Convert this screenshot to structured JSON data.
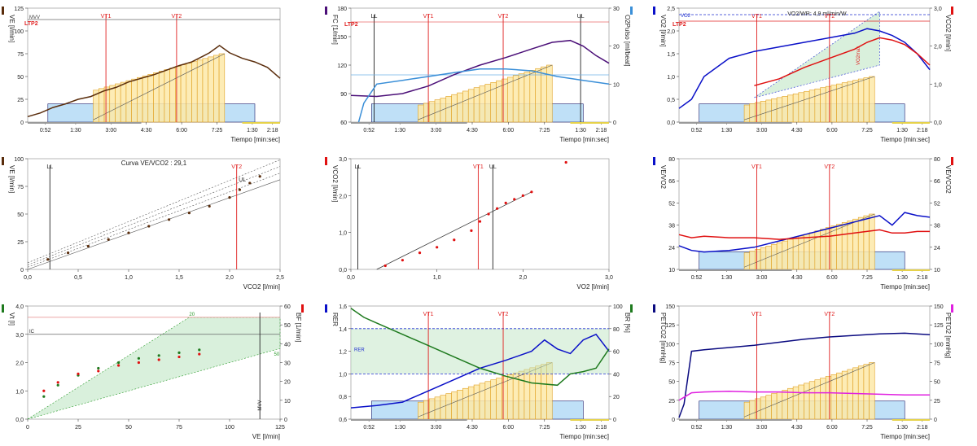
{
  "time_ticks": [
    "0:52",
    "1:30",
    "3:00",
    "4:30",
    "6:00",
    "7:25",
    "1:30",
    "2:18"
  ],
  "time_axis_label": "Tiempo [min:sec]",
  "colors": {
    "load_fill": "#fde9a8",
    "load_stroke": "#e0a020",
    "rest_fill": "#bfe0f7",
    "ve": "#5a2d0c",
    "hr": "#4b0f78",
    "o2pulse": "#3a8fd8",
    "vo2": "#0a10c8",
    "vco2": "#e01010",
    "eqo2": "#0a10c8",
    "eqco2": "#e01010",
    "rer": "#0a10c8",
    "br": "#1e7a1e",
    "petco2": "#0a0a80",
    "peto2": "#e020e0",
    "threshold": "#e02020",
    "marker": "#222222",
    "grid_band": "#2030d0",
    "hatch": "#2a9a2a"
  },
  "chart_data": [
    {
      "id": "ve-time",
      "type": "line",
      "y_label": "VE [l/min]",
      "ylim": [
        0,
        125
      ],
      "y_ticks": [
        "0",
        "25",
        "50",
        "75",
        "100",
        "125"
      ],
      "markers": {
        "VT1": "VT1",
        "VT2": "VT2",
        "LTP2": "LTP2",
        "MVV": "MVV"
      },
      "series": [
        {
          "key": "ve",
          "x": [
            0,
            0.05,
            0.1,
            0.15,
            0.2,
            0.25,
            0.3,
            0.35,
            0.4,
            0.45,
            0.5,
            0.55,
            0.6,
            0.65,
            0.7,
            0.72,
            0.76,
            0.8,
            0.85,
            0.9,
            0.95,
            1.0
          ],
          "y": [
            6,
            10,
            16,
            20,
            25,
            28,
            34,
            38,
            44,
            48,
            52,
            57,
            62,
            66,
            73,
            76,
            84,
            76,
            70,
            66,
            60,
            48
          ]
        }
      ]
    },
    {
      "id": "hr-time",
      "type": "line",
      "y_label": "FC [1/min]",
      "y_label_right": "O2Pulso [ml/beat]",
      "ylim": [
        60,
        180
      ],
      "y_ticks": [
        "60",
        "90",
        "120",
        "150",
        "180"
      ],
      "y2lim": [
        0,
        30
      ],
      "y2_ticks": [
        "0",
        "10",
        "20",
        "30"
      ],
      "markers": {
        "LL": "LL",
        "VT1": "VT1",
        "VT2": "VT2",
        "UL": "UL",
        "LTP2": "LTP2"
      },
      "series": [
        {
          "key": "hr",
          "x": [
            0,
            0.1,
            0.2,
            0.3,
            0.4,
            0.5,
            0.6,
            0.7,
            0.78,
            0.85,
            0.9,
            0.95,
            1.0
          ],
          "y": [
            88,
            87,
            90,
            98,
            110,
            120,
            128,
            137,
            144,
            146,
            140,
            130,
            122
          ]
        },
        {
          "key": "o2pulse",
          "x": [
            0.03,
            0.05,
            0.1,
            0.2,
            0.3,
            0.4,
            0.5,
            0.6,
            0.7,
            0.8,
            0.9,
            1.0
          ],
          "y": [
            0,
            5,
            10,
            11,
            12,
            13,
            14,
            14,
            13.5,
            12,
            11,
            10
          ]
        }
      ]
    },
    {
      "id": "vo2-vco2-time",
      "type": "line",
      "y_label": "VO2 [l/min]",
      "y_label_right": "VCO2 [l/min]",
      "ylim": [
        0,
        2.5
      ],
      "y_ticks": [
        "0,0",
        "0,5",
        "1,0",
        "1,5",
        "2,0",
        "2,5"
      ],
      "y2_ticks": [
        "0,0",
        "1,0",
        "2,0",
        "3,0"
      ],
      "annotation": "VO2/WR: 4,9 ml/min/W",
      "markers": {
        "VO2": "VO2",
        "VT1": "VT1",
        "VT2": "VT2",
        "LTP2": "LTP2",
        "VO2max": "VO2max"
      },
      "series": [
        {
          "key": "vo2",
          "x": [
            0,
            0.05,
            0.1,
            0.2,
            0.3,
            0.4,
            0.5,
            0.6,
            0.7,
            0.75,
            0.8,
            0.85,
            0.9,
            0.95,
            1.0
          ],
          "y": [
            0.3,
            0.5,
            1.0,
            1.4,
            1.55,
            1.65,
            1.75,
            1.85,
            1.95,
            2.05,
            2.0,
            1.9,
            1.75,
            1.5,
            1.15
          ]
        },
        {
          "key": "vco2",
          "x": [
            0.3,
            0.4,
            0.5,
            0.6,
            0.7,
            0.75,
            0.8,
            0.85,
            0.9,
            0.95,
            1.0
          ],
          "y": [
            0.8,
            0.95,
            1.2,
            1.4,
            1.6,
            1.75,
            1.85,
            1.8,
            1.7,
            1.5,
            1.25
          ]
        }
      ]
    },
    {
      "id": "ve-vco2",
      "type": "scatter",
      "title": "Curva VE/VCO2 : 29,1",
      "x_label": "VCO2 [l/min]",
      "y_label": "VE [l/min]",
      "xlim": [
        0,
        2.5
      ],
      "x_ticks": [
        "0,0",
        "0,5",
        "1,0",
        "1,5",
        "2,0",
        "2,5"
      ],
      "ylim": [
        0,
        100
      ],
      "y_ticks": [
        "0",
        "25",
        "50",
        "75",
        "100"
      ],
      "markers": {
        "LL": "LL",
        "VT2": "VT2",
        "UL": "UL"
      },
      "series": [
        {
          "key": "ve",
          "x": [
            0.2,
            0.4,
            0.6,
            0.8,
            1.0,
            1.2,
            1.4,
            1.6,
            1.8,
            2.0,
            2.1,
            2.2,
            2.3
          ],
          "y": [
            9,
            15,
            21,
            27,
            33,
            39,
            45,
            51,
            57,
            65,
            72,
            78,
            84
          ]
        }
      ]
    },
    {
      "id": "vco2-vo2",
      "type": "scatter",
      "x_label": "VO2 [l/min]",
      "y_label": "VCO2 [l/min]",
      "xlim": [
        0,
        3.0
      ],
      "x_ticks": [
        "0,0",
        "1,0",
        "2,0",
        "3,0"
      ],
      "ylim": [
        0,
        3.0
      ],
      "y_ticks": [
        "0,0",
        "1,0",
        "2,0",
        "3,0"
      ],
      "markers": {
        "LL": "LL",
        "VT1": "VT1",
        "UL": "UL"
      },
      "series": [
        {
          "key": "vco2",
          "x": [
            0.4,
            0.6,
            0.8,
            1.0,
            1.2,
            1.4,
            1.5,
            1.6,
            1.7,
            1.8,
            1.9,
            2.0,
            2.1,
            2.5
          ],
          "y": [
            0.1,
            0.25,
            0.45,
            0.6,
            0.8,
            1.05,
            1.3,
            1.5,
            1.65,
            1.8,
            1.9,
            2.0,
            2.1,
            2.9
          ]
        }
      ]
    },
    {
      "id": "eq-time",
      "type": "line",
      "y_label": "VE/VO2",
      "y_label_right": "VE/VCO2",
      "ylim": [
        10,
        80
      ],
      "y_ticks": [
        "10",
        "24",
        "38",
        "52",
        "66",
        "80"
      ],
      "markers": {
        "VT1": "VT1",
        "VT2": "VT2"
      },
      "series": [
        {
          "key": "eqo2",
          "x": [
            0,
            0.05,
            0.1,
            0.2,
            0.3,
            0.4,
            0.5,
            0.6,
            0.7,
            0.8,
            0.85,
            0.9,
            0.95,
            1.0
          ],
          "y": [
            25,
            22,
            21,
            22,
            24,
            28,
            32,
            36,
            40,
            44,
            38,
            46,
            44,
            43
          ]
        },
        {
          "key": "eqco2",
          "x": [
            0,
            0.05,
            0.1,
            0.2,
            0.3,
            0.4,
            0.5,
            0.6,
            0.7,
            0.8,
            0.85,
            0.9,
            0.95,
            1.0
          ],
          "y": [
            32,
            30,
            31,
            30,
            30,
            29,
            30,
            31,
            33,
            35,
            33,
            33,
            34,
            34
          ]
        }
      ]
    },
    {
      "id": "vt-ve",
      "type": "scatter",
      "x_label": "VE [l/min]",
      "y_label": "Vt [l]",
      "y_label_right": "BF [1/min]",
      "xlim": [
        0,
        125
      ],
      "x_ticks": [
        "0",
        "25",
        "50",
        "75",
        "100",
        "125"
      ],
      "ylim": [
        0,
        4.0
      ],
      "y_ticks": [
        "0,0",
        "1,0",
        "2,0",
        "3,0",
        "4,0"
      ],
      "y2_ticks": [
        "0",
        "10",
        "20",
        "30",
        "40",
        "50",
        "60"
      ],
      "markers": {
        "IC": "IC",
        "MVV": "MVV",
        "20": "20",
        "50": "50"
      },
      "series": [
        {
          "key": "vt",
          "x": [
            8,
            15,
            25,
            35,
            45,
            55,
            65,
            75,
            85
          ],
          "y": [
            0.8,
            1.2,
            1.55,
            1.8,
            2.0,
            2.15,
            2.25,
            2.35,
            2.45
          ]
        },
        {
          "key": "bf",
          "x": [
            8,
            15,
            25,
            35,
            45,
            55,
            65,
            75,
            85
          ],
          "y": [
            1.0,
            1.3,
            1.6,
            1.7,
            1.9,
            2.0,
            2.1,
            2.2,
            2.3
          ]
        }
      ]
    },
    {
      "id": "rer-time",
      "type": "line",
      "y_label": "RER",
      "y_label_right": "BR [%]",
      "ylim": [
        0.6,
        1.6
      ],
      "y_ticks": [
        "0,6",
        "0,8",
        "1,0",
        "1,2",
        "1,4",
        "1,6"
      ],
      "y2_ticks": [
        "0",
        "20",
        "40",
        "60",
        "80",
        "100"
      ],
      "markers": {
        "VT1": "VT1",
        "VT2": "VT2",
        "RER": "RER"
      },
      "series": [
        {
          "key": "rer",
          "x": [
            0,
            0.1,
            0.2,
            0.3,
            0.4,
            0.5,
            0.6,
            0.7,
            0.75,
            0.8,
            0.85,
            0.9,
            0.95,
            1.0
          ],
          "y": [
            0.7,
            0.72,
            0.75,
            0.85,
            0.95,
            1.05,
            1.12,
            1.2,
            1.3,
            1.22,
            1.18,
            1.3,
            1.35,
            1.2
          ]
        },
        {
          "key": "br",
          "x": [
            0,
            0.05,
            0.1,
            0.2,
            0.3,
            0.4,
            0.5,
            0.6,
            0.7,
            0.8,
            0.85,
            0.9,
            0.95,
            1.0
          ],
          "y": [
            98,
            90,
            85,
            75,
            65,
            55,
            45,
            38,
            32,
            30,
            40,
            42,
            45,
            62
          ]
        }
      ]
    },
    {
      "id": "petco2-time",
      "type": "line",
      "y_label": "PETCO2 [mmHg]",
      "y_label_right": "PETO2 [mmHg]",
      "ylim": [
        0,
        150
      ],
      "y_ticks": [
        "0",
        "25",
        "50",
        "75",
        "100",
        "125",
        "150"
      ],
      "markers": {
        "VT1": "VT1",
        "VT2": "VT2"
      },
      "series": [
        {
          "key": "petco2",
          "x": [
            0,
            0.02,
            0.05,
            0.1,
            0.2,
            0.3,
            0.4,
            0.5,
            0.6,
            0.7,
            0.8,
            0.9,
            1.0
          ],
          "y": [
            2,
            20,
            90,
            92,
            95,
            98,
            102,
            106,
            109,
            111,
            113,
            114,
            112
          ]
        },
        {
          "key": "peto2",
          "x": [
            0,
            0.05,
            0.1,
            0.2,
            0.3,
            0.4,
            0.5,
            0.6,
            0.7,
            0.8,
            0.9,
            1.0
          ],
          "y": [
            25,
            35,
            36,
            37,
            36,
            36,
            35,
            35,
            34,
            33,
            32,
            32
          ]
        }
      ]
    }
  ]
}
